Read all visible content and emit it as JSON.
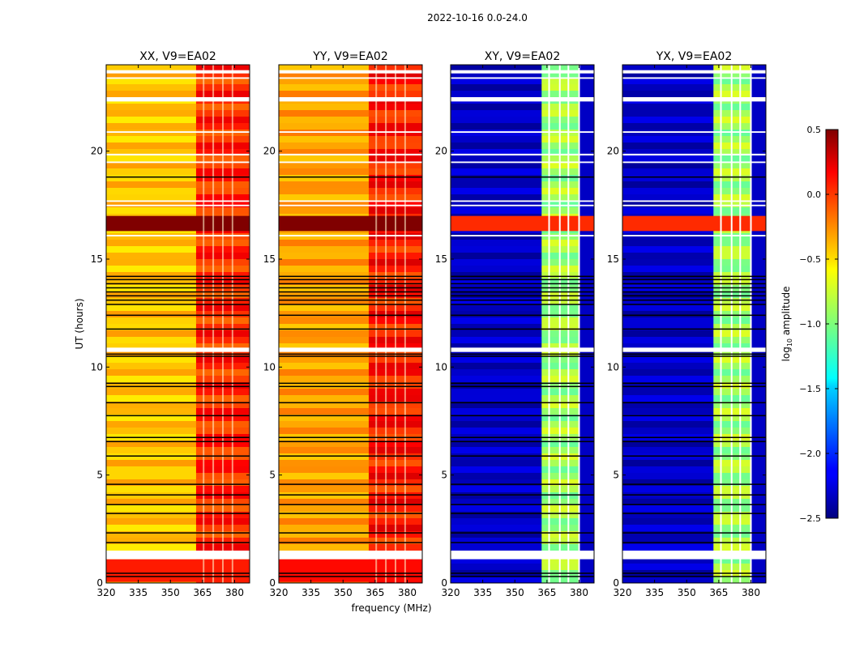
{
  "chart_data": {
    "type": "heatmap",
    "title": "2022-10-16 0.0-24.0",
    "xlabel": "frequency (MHz)",
    "ylabel": "UT (hours)",
    "xlim": [
      320,
      387
    ],
    "ylim": [
      0,
      24
    ],
    "xticks": [
      "320",
      "335",
      "350",
      "365",
      "380"
    ],
    "yticks": [
      "0",
      "5",
      "10",
      "15",
      "20"
    ],
    "colorbar": {
      "label_main": "log",
      "label_sub": "10",
      "label_rest": " amplitude",
      "range": [
        -2.5,
        0.5
      ],
      "colormap": "jet",
      "ticks": [
        "0.5",
        "0.0",
        "−0.5",
        "−1.0",
        "−1.5",
        "−2.0",
        "−2.5"
      ],
      "tick_values": [
        0.5,
        0.0,
        -0.5,
        -1.0,
        -1.5,
        -2.0,
        -2.5
      ]
    },
    "panels": [
      {
        "title": "XX, V9=EA02",
        "base_value": -0.45,
        "rfi_region": {
          "from": 362,
          "to": 387,
          "value": 0.0
        },
        "bands": [
          {
            "from": 16.3,
            "to": 17.0,
            "value": 0.5
          },
          {
            "from": 0.05,
            "to": 1.1,
            "value": 0.05
          }
        ],
        "channel_lines": [
          365.5,
          370,
          374.5,
          379
        ]
      },
      {
        "title": "YY, V9=EA02",
        "base_value": -0.35,
        "rfi_region": {
          "from": 362,
          "to": 387,
          "value": 0.05
        },
        "bands": [
          {
            "from": 16.3,
            "to": 17.0,
            "value": 0.5
          },
          {
            "from": 0.05,
            "to": 1.1,
            "value": 0.1
          }
        ],
        "channel_lines": [
          365.5,
          370,
          374.5,
          379
        ]
      },
      {
        "title": "XY, V9=EA02",
        "base_value": -2.3,
        "rfi_region": {
          "from": 362.5,
          "to": 380,
          "value": -0.9
        },
        "bands": [
          {
            "from": 16.3,
            "to": 17.0,
            "value": 0.0
          }
        ],
        "channel_lines": [
          366,
          371,
          375,
          380
        ]
      },
      {
        "title": "YX, V9=EA02",
        "base_value": -2.3,
        "rfi_region": {
          "from": 362.5,
          "to": 380,
          "value": -0.9
        },
        "bands": [
          {
            "from": 16.3,
            "to": 17.0,
            "value": 0.0
          }
        ],
        "channel_lines": [
          366,
          371,
          375,
          380
        ]
      }
    ],
    "flagged_rows_white": [
      [
        23.6,
        23.75
      ],
      [
        23.35,
        23.42
      ],
      [
        22.3,
        22.5
      ],
      [
        20.85,
        20.92
      ],
      [
        19.8,
        19.88
      ],
      [
        19.45,
        19.52
      ],
      [
        17.65,
        17.72
      ],
      [
        17.45,
        17.52
      ],
      [
        16.05,
        16.12
      ],
      [
        10.7,
        10.9
      ],
      [
        1.1,
        1.5
      ]
    ],
    "flagged_rows_black": [
      18.8,
      14.2,
      14.05,
      13.86,
      13.67,
      13.48,
      13.3,
      13.1,
      12.9,
      12.4,
      11.76,
      10.6,
      10.5,
      9.25,
      9.1,
      8.35,
      7.75,
      6.74,
      6.55,
      5.88,
      4.57,
      4.08,
      3.63,
      3.22,
      2.32,
      1.87,
      0.45,
      0.3
    ]
  }
}
